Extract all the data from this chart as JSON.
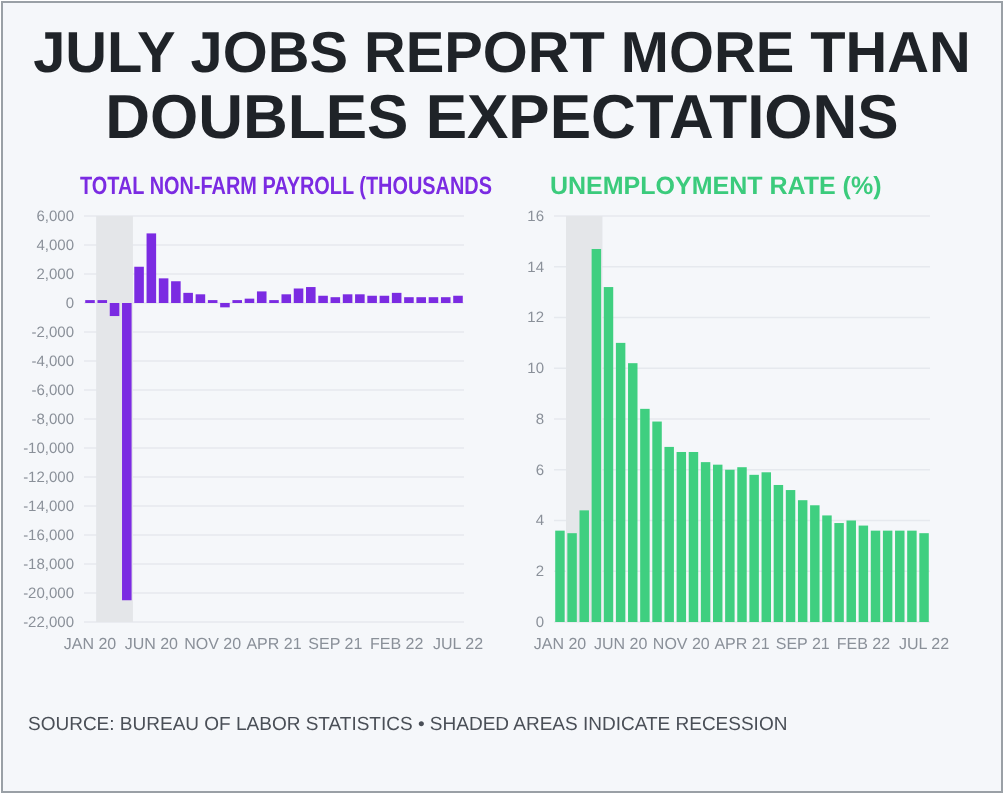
{
  "chart_data": [
    {
      "type": "bar",
      "title": "JULY JOBS REPORT MORE THAN DOUBLES EXPECTATIONS",
      "subtitle": "TOTAL NON-FARM PAYROLL (THOUSANDS",
      "categories": [
        "JAN 20",
        null,
        null,
        null,
        null,
        "JUN 20",
        null,
        null,
        null,
        null,
        "NOV 20",
        null,
        null,
        null,
        null,
        "APR 21",
        null,
        null,
        null,
        null,
        "SEP 21",
        null,
        null,
        null,
        null,
        "FEB 22",
        null,
        null,
        null,
        null,
        "JUL 22"
      ],
      "series": [
        {
          "color": "#7b2be2",
          "values": [
            200,
            200,
            -900,
            -20500,
            2500,
            4800,
            1700,
            1500,
            700,
            600,
            200,
            -300,
            200,
            300,
            800,
            200,
            600,
            1000,
            1100,
            500,
            400,
            600,
            600,
            500,
            500,
            700,
            400,
            400,
            400,
            400,
            500
          ]
        }
      ],
      "ylim": [
        -22000,
        6000
      ],
      "yticks": [
        {
          "value": -22000,
          "label": "-22,000"
        },
        {
          "value": -20000,
          "label": "-20,000"
        },
        {
          "value": -18000,
          "label": "-18,000"
        },
        {
          "value": -16000,
          "label": "-16,000"
        },
        {
          "value": -14000,
          "label": "-14,000"
        },
        {
          "value": -12000,
          "label": "-12,000"
        },
        {
          "value": -10000,
          "label": "-10,000"
        },
        {
          "value": -8000,
          "label": "-8,000"
        },
        {
          "value": -6000,
          "label": "-6,000"
        },
        {
          "value": -4000,
          "label": "-4,000"
        },
        {
          "value": -2000,
          "label": "-2,000"
        },
        0,
        {
          "value": 2000,
          "label": "2,000"
        },
        {
          "value": 4000,
          "label": "4,000"
        },
        {
          "value": 6000,
          "label": "6,000"
        }
      ],
      "grid": "y",
      "annotations": [
        "SOURCE: BUREAU OF LABOR STATISTICS • SHADED AREAS INDICATE RECESSION"
      ]
    },
    {
      "type": "bar",
      "title": "UNEMPLOYMENT RATE (%)",
      "categories": [
        "JAN 20",
        null,
        null,
        null,
        null,
        "JUN 20",
        null,
        null,
        null,
        null,
        "NOV 20",
        null,
        null,
        null,
        null,
        "APR 21",
        null,
        null,
        null,
        null,
        "SEP 21",
        null,
        null,
        null,
        null,
        "FEB 22",
        null,
        null,
        null,
        null,
        "JUL 22"
      ],
      "series": [
        {
          "color": "#3fcf80",
          "values": [
            3.6,
            3.5,
            4.4,
            14.7,
            13.2,
            11.0,
            10.2,
            8.4,
            7.9,
            6.9,
            6.7,
            6.7,
            6.3,
            6.2,
            6.0,
            6.1,
            5.8,
            5.9,
            5.4,
            5.2,
            4.8,
            4.6,
            4.2,
            3.9,
            4.0,
            3.8,
            3.6,
            3.6,
            3.6,
            3.6,
            3.5
          ]
        }
      ],
      "ylim": [
        0,
        16
      ],
      "yticks": [
        0,
        2,
        4,
        6,
        8,
        10,
        12,
        14,
        16
      ],
      "grid": "y"
    }
  ]
}
